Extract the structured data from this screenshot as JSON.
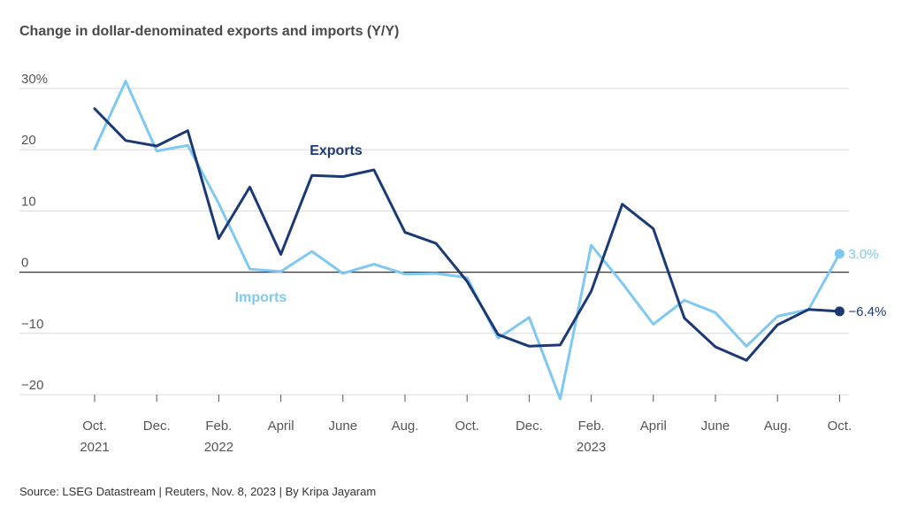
{
  "chart_data": {
    "type": "line",
    "title": "Change in dollar-denominated exports and imports (Y/Y)",
    "source": "Source: LSEG Datastream | Reuters, Nov. 8, 2023 | By Kripa Jayaram",
    "ylim": [
      -20,
      30
    ],
    "y_ticks": [
      30,
      20,
      10,
      0,
      -10,
      -20
    ],
    "y_tick_labels": [
      "30%",
      "20",
      "10",
      "0",
      "−10",
      "−20"
    ],
    "grid": true,
    "x_ticks": [
      {
        "index": 0,
        "line1": "Oct.",
        "line2": "2021"
      },
      {
        "index": 2,
        "line1": "Dec.",
        "line2": ""
      },
      {
        "index": 4,
        "line1": "Feb.",
        "line2": "2022"
      },
      {
        "index": 6,
        "line1": "April",
        "line2": ""
      },
      {
        "index": 8,
        "line1": "June",
        "line2": ""
      },
      {
        "index": 10,
        "line1": "Aug.",
        "line2": ""
      },
      {
        "index": 12,
        "line1": "Oct.",
        "line2": ""
      },
      {
        "index": 14,
        "line1": "Dec.",
        "line2": ""
      },
      {
        "index": 16,
        "line1": "Feb.",
        "line2": "2023"
      },
      {
        "index": 18,
        "line1": "April",
        "line2": ""
      },
      {
        "index": 20,
        "line1": "June",
        "line2": ""
      },
      {
        "index": 22,
        "line1": "Aug.",
        "line2": ""
      },
      {
        "index": 24,
        "line1": "Oct.",
        "line2": ""
      }
    ],
    "series": [
      {
        "name": "Exports",
        "color": "#1b3a75",
        "end_label": "−6.4%",
        "values": [
          26.7,
          21.5,
          20.6,
          23.1,
          5.5,
          13.9,
          2.9,
          15.8,
          15.6,
          16.7,
          6.5,
          4.7,
          -1.5,
          -10.2,
          -12.1,
          -11.9,
          -3.1,
          11.1,
          7.1,
          -7.5,
          -12.2,
          -14.4,
          -8.6,
          -6.1,
          -6.4
        ]
      },
      {
        "name": "Imports",
        "color": "#7ec8f2",
        "end_label": "3.0%",
        "values": [
          20.1,
          31.2,
          19.8,
          20.7,
          11.2,
          0.5,
          0.1,
          3.4,
          -0.2,
          1.3,
          -0.3,
          -0.2,
          -0.9,
          -10.8,
          -7.4,
          -20.7,
          4.4,
          -1.8,
          -8.5,
          -4.6,
          -6.6,
          -12.1,
          -7.2,
          -6.1,
          3.0
        ]
      }
    ]
  }
}
